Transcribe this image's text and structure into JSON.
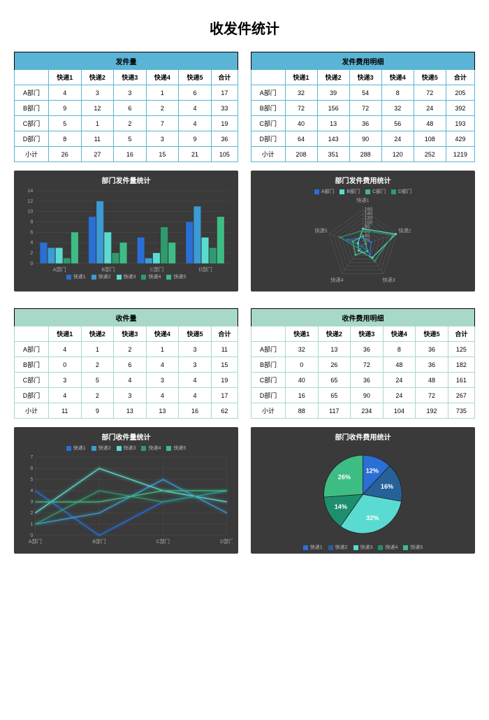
{
  "page_title": "收发件统计",
  "colors": {
    "blue_header": "#5ab4d6",
    "green_header": "#a8d8c8",
    "chart_bg": "#3a3a3a",
    "series": [
      "#2a6fd6",
      "#3a9bd6",
      "#5adbd1",
      "#2e9b6f",
      "#3dbd84"
    ],
    "pie": [
      "#2a6fd6",
      "#266199",
      "#5adbd1",
      "#1e8f6e",
      "#3dbd84"
    ]
  },
  "col_headers": [
    "",
    "快递1",
    "快递2",
    "快递3",
    "快递4",
    "快递5",
    "合计"
  ],
  "row_labels": [
    "A部门",
    "B部门",
    "C部门",
    "D部门",
    "小计"
  ],
  "tables": {
    "send_qty": {
      "title": "发件量",
      "theme": "blue",
      "rows": [
        [
          4,
          3,
          3,
          1,
          6,
          17
        ],
        [
          9,
          12,
          6,
          2,
          4,
          33
        ],
        [
          5,
          1,
          2,
          7,
          4,
          19
        ],
        [
          8,
          11,
          5,
          3,
          9,
          36
        ],
        [
          26,
          27,
          16,
          15,
          21,
          105
        ]
      ]
    },
    "send_cost": {
      "title": "发件费用明细",
      "theme": "blue",
      "rows": [
        [
          32,
          39,
          54,
          8,
          72,
          205
        ],
        [
          72,
          156,
          72,
          32,
          24,
          392
        ],
        [
          40,
          13,
          36,
          56,
          48,
          193
        ],
        [
          64,
          143,
          90,
          24,
          108,
          429
        ],
        [
          208,
          351,
          288,
          120,
          252,
          1219
        ]
      ]
    },
    "recv_qty": {
      "title": "收件量",
      "theme": "green",
      "rows": [
        [
          4,
          1,
          2,
          1,
          3,
          11
        ],
        [
          0,
          2,
          6,
          4,
          3,
          15
        ],
        [
          3,
          5,
          4,
          3,
          4,
          19
        ],
        [
          4,
          2,
          3,
          4,
          4,
          17
        ],
        [
          11,
          9,
          13,
          13,
          16,
          62
        ]
      ]
    },
    "recv_cost": {
      "title": "收件费用明细",
      "theme": "green",
      "rows": [
        [
          32,
          13,
          36,
          8,
          36,
          125
        ],
        [
          0,
          26,
          72,
          48,
          36,
          182
        ],
        [
          40,
          65,
          36,
          24,
          48,
          161
        ],
        [
          16,
          65,
          90,
          24,
          72,
          267
        ],
        [
          88,
          117,
          234,
          104,
          192,
          735
        ]
      ]
    }
  },
  "charts": {
    "bar": {
      "title": "部门发件量统计",
      "ymax": 14,
      "ytick_step": 2,
      "groups": [
        "A部门",
        "B部门",
        "C部门",
        "D部门"
      ],
      "series_labels": [
        "快递1",
        "快递2",
        "快递3",
        "快递4",
        "快递5"
      ],
      "data": [
        [
          4,
          3,
          3,
          1,
          6
        ],
        [
          9,
          12,
          6,
          2,
          4
        ],
        [
          5,
          1,
          2,
          7,
          4
        ],
        [
          8,
          11,
          5,
          3,
          9
        ]
      ]
    },
    "radar": {
      "title": "部门发件费用统计",
      "axes": [
        "快递1",
        "快递2",
        "快递3",
        "快递4",
        "快递5"
      ],
      "rings": [
        20,
        40,
        60,
        80,
        100,
        120,
        140,
        160
      ],
      "legend": [
        "A部门",
        "B部门",
        "C部门",
        "D部门"
      ],
      "data": [
        [
          32,
          39,
          54,
          8,
          72
        ],
        [
          72,
          156,
          72,
          32,
          24
        ],
        [
          40,
          13,
          36,
          56,
          48
        ],
        [
          64,
          143,
          90,
          24,
          108
        ]
      ],
      "line_colors": [
        "#2a6fd6",
        "#5adbd1",
        "#3dbd84",
        "#2e9b6f"
      ]
    },
    "line": {
      "title": "部门收件量统计",
      "ymax": 7,
      "ytick_step": 1,
      "x_labels": [
        "A部门",
        "B部门",
        "C部门",
        "D部门"
      ],
      "series_labels": [
        "快递1",
        "快递2",
        "快递3",
        "快递4",
        "快递5"
      ],
      "data": [
        [
          4,
          0,
          3,
          4
        ],
        [
          1,
          2,
          5,
          2
        ],
        [
          2,
          6,
          4,
          3
        ],
        [
          1,
          4,
          3,
          4
        ],
        [
          3,
          3,
          4,
          4
        ]
      ]
    },
    "pie": {
      "title": "部门收件费用统计",
      "labels": [
        "快递1",
        "快递2",
        "快递3",
        "快递4",
        "快递5"
      ],
      "values": [
        88,
        117,
        234,
        104,
        192
      ],
      "colors": [
        "#2a6fd6",
        "#266199",
        "#5adbd1",
        "#1e8f6e",
        "#3dbd84"
      ]
    }
  }
}
